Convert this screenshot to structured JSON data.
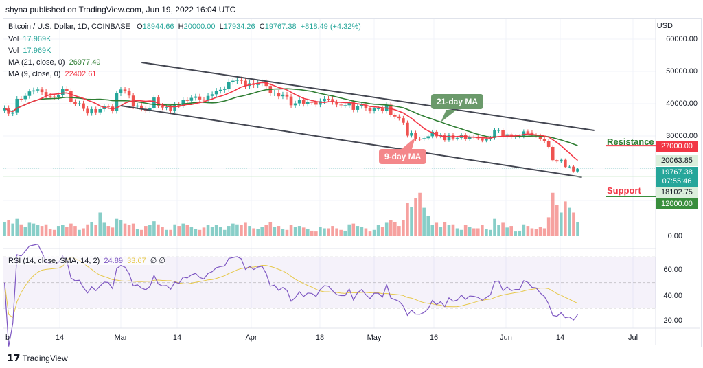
{
  "publisher": "shyna published on TradingView.com, Jun 19, 2022 16:04 UTC",
  "legend": {
    "symbol": "Bitcoin / U.S. Dollar, 1D, COINBASE",
    "o_label": "O",
    "o": "18944.66",
    "h_label": "H",
    "h": "20000.00",
    "l_label": "L",
    "l": "17934.26",
    "c_label": "C",
    "c": "19767.38",
    "change": "+818.49 (+4.32%)",
    "vol1_label": "Vol",
    "vol1": "17.969K",
    "vol2_label": "Vol",
    "vol2": "17.969K",
    "ma21_label": "MA (21, close, 0)",
    "ma21": "26977.49",
    "ma9_label": "MA (9, close, 0)",
    "ma9": "22402.61",
    "rsi_label": "RSI (14, close, SMA, 14, 2)",
    "rsi": "24.89",
    "rsi_sma": "33.67",
    "rsi_extra1": "∅",
    "rsi_extra2": "∅"
  },
  "price_axis": {
    "currency": "USD",
    "ticks": [
      "60000.00",
      "50000.00",
      "40000.00",
      "30000.00"
    ],
    "vol_tick": "0.00",
    "rsi_ticks": [
      "60.00",
      "40.00",
      "20.00"
    ]
  },
  "price_tags": {
    "resistance": "27000.00",
    "high_line": "20063.85",
    "last": "19767.38",
    "countdown": "07:55:46",
    "low_line": "18102.75",
    "support": "12000.00"
  },
  "annotations": {
    "resistance": "Resistance",
    "support": "Support",
    "ma21": "21-day MA",
    "ma9": "9-day MA"
  },
  "x_axis": [
    "b",
    "14",
    "Mar",
    "14",
    "Apr",
    "18",
    "May",
    "16",
    "Jun",
    "14",
    "Jul"
  ],
  "logo": "TradingView",
  "colors": {
    "up": "#26a69a",
    "down": "#ef5350",
    "ma21": "#2e7d32",
    "ma9": "#f23645",
    "rsi": "#7e57c2",
    "rsi_sma": "#e6c84a",
    "trend": "#434651"
  },
  "chart_data": {
    "type": "candlestick",
    "start_date": "2022-02-01",
    "interval": "1D",
    "close": [
      38700,
      36900,
      37300,
      41500,
      41400,
      42400,
      43800,
      44100,
      44400,
      43600,
      42400,
      42200,
      42100,
      42600,
      44600,
      43900,
      40600,
      40000,
      40100,
      38400,
      37000,
      38300,
      37300,
      38300,
      39200,
      39100,
      37700,
      43200,
      44400,
      44000,
      42500,
      39100,
      39400,
      38400,
      37900,
      38700,
      41900,
      39400,
      38800,
      38900,
      37800,
      39700,
      39300,
      41100,
      40900,
      41800,
      42200,
      41300,
      41000,
      42400,
      42900,
      44000,
      44300,
      44500,
      46800,
      47100,
      47400,
      47100,
      45500,
      46300,
      45800,
      46400,
      46600,
      45500,
      43200,
      43400,
      42300,
      42800,
      42200,
      39500,
      40100,
      41100,
      39900,
      40500,
      40400,
      39700,
      40800,
      41500,
      41400,
      40500,
      39700,
      39500,
      39500,
      40400,
      38100,
      39200,
      39700,
      38600,
      37700,
      38500,
      38500,
      37700,
      39700,
      36500,
      36000,
      35500,
      34100,
      30100,
      31000,
      29100,
      29000,
      29300,
      29900,
      31300,
      29900,
      30400,
      28700,
      30300,
      29200,
      29400,
      30300,
      29100,
      29700,
      29600,
      29300,
      28600,
      29000,
      29400,
      31700,
      31800,
      29800,
      30500,
      29700,
      29900,
      29900,
      31400,
      31100,
      30200,
      30100,
      29100,
      28400,
      26600,
      22500,
      22100,
      22600,
      20400,
      20500,
      19000,
      19767.38
    ],
    "volume": [
      18,
      20,
      16,
      22,
      15,
      12,
      17,
      16,
      14,
      13,
      15,
      9,
      8,
      13,
      14,
      12,
      16,
      13,
      8,
      10,
      15,
      18,
      14,
      30,
      17,
      13,
      11,
      22,
      20,
      16,
      14,
      16,
      9,
      8,
      13,
      14,
      19,
      15,
      12,
      8,
      8,
      15,
      13,
      16,
      14,
      12,
      9,
      8,
      11,
      14,
      12,
      14,
      12,
      8,
      13,
      16,
      15,
      14,
      17,
      13,
      10,
      9,
      12,
      14,
      18,
      12,
      13,
      9,
      8,
      14,
      12,
      13,
      11,
      9,
      7,
      6,
      12,
      10,
      10,
      13,
      10,
      8,
      7,
      15,
      16,
      13,
      12,
      10,
      6,
      8,
      14,
      12,
      17,
      20,
      18,
      13,
      20,
      42,
      37,
      48,
      55,
      36,
      26,
      14,
      17,
      12,
      18,
      14,
      15,
      10,
      8,
      14,
      12,
      10,
      10,
      14,
      9,
      8,
      22,
      14,
      17,
      11,
      13,
      6,
      7,
      15,
      13,
      10,
      9,
      12,
      10,
      24,
      55,
      40,
      30,
      44,
      36,
      30,
      17.969
    ],
    "trendlines": [
      {
        "from": [
          "2022-03-06",
          52770
        ],
        "to": [
          "2022-06-23",
          31700
        ]
      },
      {
        "from": [
          "2022-03-01",
          39360
        ],
        "to": [
          "2022-06-20",
          17230
        ]
      }
    ],
    "horizontal_levels": {
      "resistance": 27000,
      "support": 12000
    },
    "ylim": [
      0,
      65000
    ],
    "rsi_levels": [
      70,
      30
    ]
  }
}
